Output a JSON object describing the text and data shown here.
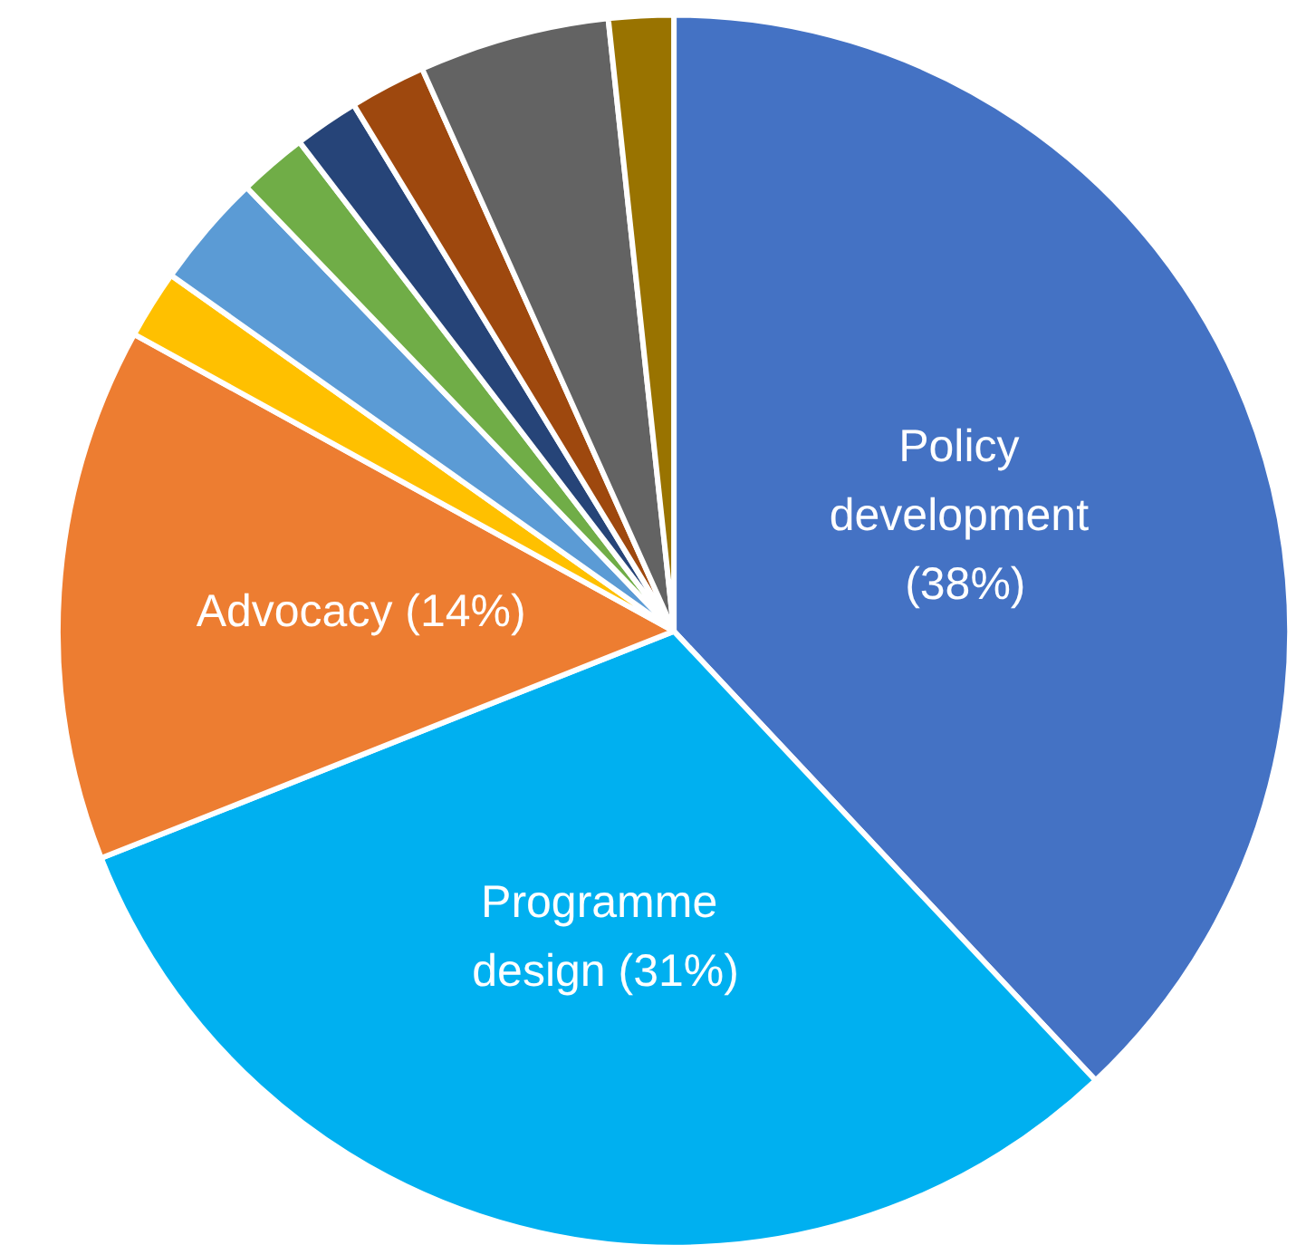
{
  "chart_data": {
    "type": "pie",
    "categories": [
      "Policy development",
      "Programme design",
      "Advocacy",
      null,
      null,
      null,
      null,
      null,
      null,
      null
    ],
    "values": [
      38,
      31,
      14,
      1.8,
      3,
      1.8,
      1.7,
      2,
      5,
      1.7
    ],
    "value_labels": [
      "(38%)",
      "(31%)",
      "(14%)",
      null,
      null,
      null,
      null,
      null,
      null,
      null
    ],
    "colors": [
      "#4472c4",
      "#00b0f0",
      "#ed7d31",
      "#ffc000",
      "#5b9bd5",
      "#70ad47",
      "#264478",
      "#9e480e",
      "#636363",
      "#997300"
    ],
    "legend": false
  }
}
